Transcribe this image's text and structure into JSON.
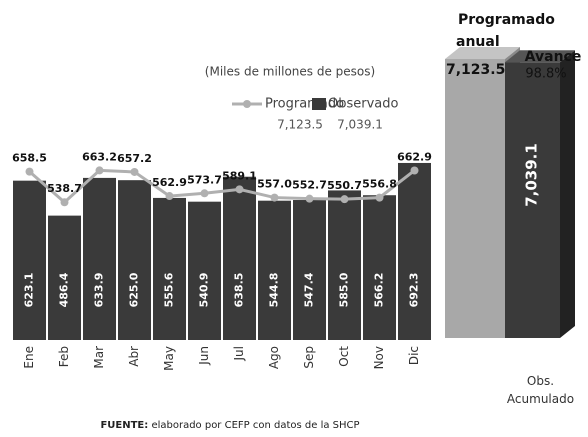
{
  "chart_data": [
    {
      "type": "bar",
      "subtitle": "(Miles de millones de pesos)",
      "categories": [
        "Ene",
        "Feb",
        "Mar",
        "Abr",
        "May",
        "Jun",
        "Jul",
        "Ago",
        "Sep",
        "Oct",
        "Nov",
        "Dic"
      ],
      "ylim": [
        0,
        700
      ],
      "series": [
        {
          "name": "Observado",
          "type": "bar",
          "color": "#3a3a3a",
          "total_label": "7,039.1",
          "values": [
            623.1,
            486.4,
            633.9,
            625.0,
            555.6,
            540.9,
            638.5,
            544.8,
            547.4,
            585.0,
            566.2,
            692.3
          ],
          "value_labels": [
            "623.1",
            "486.4",
            "633.9",
            "625.0",
            "555.6",
            "540.9",
            "638.5",
            "544.8",
            "547.4",
            "585.0",
            "566.2",
            "692.3"
          ]
        },
        {
          "name": "Programado",
          "type": "line",
          "color": "#b0b0b0",
          "total_label": "7,123.5",
          "values": [
            658.5,
            538.7,
            663.2,
            657.2,
            562.9,
            573.7,
            589.1,
            557.0,
            552.7,
            550.7,
            556.8,
            662.9
          ],
          "value_labels": [
            "658.5",
            "538.7",
            "663.2",
            "657.2",
            "562.9",
            "573.7",
            "589.1",
            "557.0",
            "552.7",
            "550.7",
            "556.8",
            "662.9"
          ]
        }
      ],
      "source_label": "FUENTE:",
      "source": "elaborado por CEFP con datos de la SHCP"
    },
    {
      "type": "bar3d",
      "categories": [
        null,
        "Obs. Acumulado"
      ],
      "values": [
        7123.5,
        7039.1
      ],
      "value_labels": [
        "7,123.5",
        "7,039.1"
      ],
      "colors": [
        "#a8a8a8",
        "#3a3a3a"
      ],
      "ylim": [
        0,
        7200
      ],
      "title": "Programado anual",
      "annotation": "Avance",
      "annotation_value": "98.8%"
    }
  ]
}
